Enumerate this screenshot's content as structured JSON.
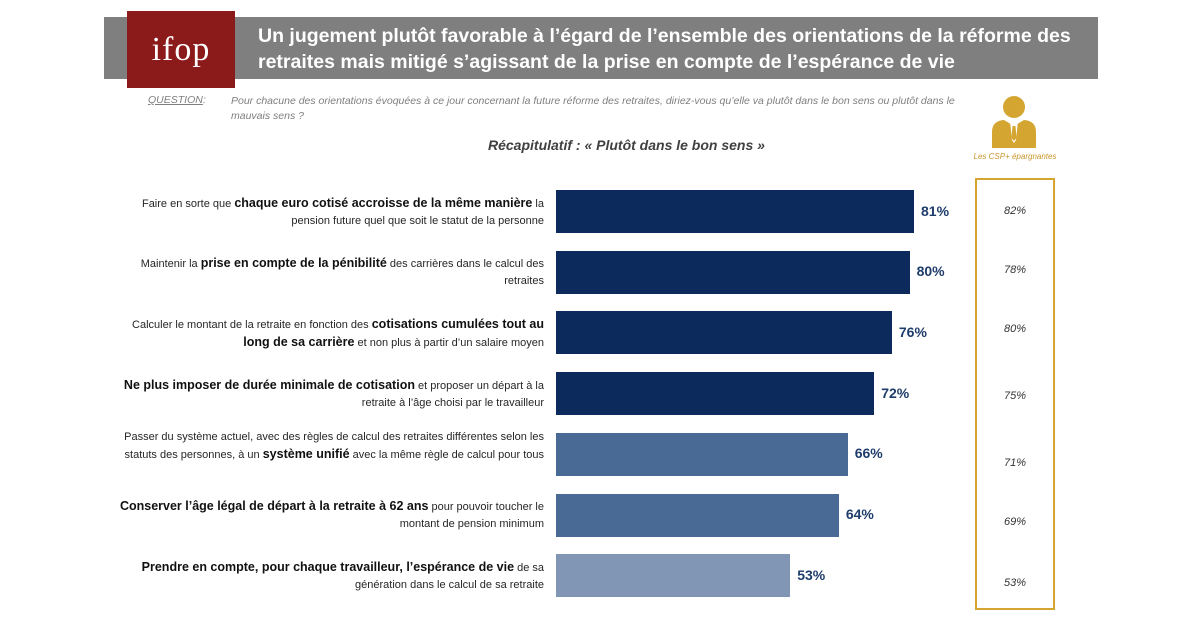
{
  "header": {
    "logo_text": "ifop",
    "title": "Un jugement plutôt favorable à l’égard de l’ensemble des orientations de la réforme des retraites mais mitigé s’agissant de la prise en compte de l’espérance de vie"
  },
  "question": {
    "label": "QUESTION",
    "colon": ":",
    "text": "Pour chacune des orientations évoquées à ce jour concernant la future réforme des retraites, diriez-vous qu’elle va plutôt dans le bon sens ou plutôt dans le mauvais sens ?"
  },
  "subtitle": "Récapitulatif : « Plutôt dans le bon sens »",
  "csp": {
    "label": "Les CSP+ épargnantes",
    "icon": "businessman-icon"
  },
  "colors": {
    "dark_bar": "#0d2a5c",
    "mid_bar": "#4a6a96",
    "light_bar": "#8096b4",
    "header_band": "#7f7f7f",
    "logo_bg": "#8b1a1a",
    "csp_accent": "#d4a531"
  },
  "chart_data": {
    "type": "bar",
    "orientation": "horizontal",
    "unit": "%",
    "xlim": [
      0,
      100
    ],
    "grid": false,
    "categories": [
      {
        "parts": [
          {
            "text": "Faire en sorte que ",
            "bold": false
          },
          {
            "text": "chaque euro cotisé accroisse de la même manière",
            "bold": true
          },
          {
            "text": " la pension future quel que soit le statut de la personne",
            "bold": false
          }
        ]
      },
      {
        "parts": [
          {
            "text": "Maintenir la ",
            "bold": false
          },
          {
            "text": "prise en compte de la pénibilité",
            "bold": true
          },
          {
            "text": " des carrières dans le calcul des retraites",
            "bold": false
          }
        ]
      },
      {
        "parts": [
          {
            "text": "Calculer le montant de la retraite en fonction des ",
            "bold": false
          },
          {
            "text": "cotisations cumulées tout au long de sa carrière",
            "bold": true
          },
          {
            "text": " et non plus à partir d’un salaire moyen",
            "bold": false
          }
        ]
      },
      {
        "parts": [
          {
            "text": "Ne plus imposer de durée minimale de cotisation",
            "bold": true
          },
          {
            "text": " et proposer un départ à la retraite à l’âge choisi par le travailleur",
            "bold": false
          }
        ]
      },
      {
        "parts": [
          {
            "text": "Passer du système actuel, avec des règles de calcul des retraites différentes selon les statuts des personnes, à un ",
            "bold": false
          },
          {
            "text": "système unifié",
            "bold": true
          },
          {
            "text": " avec la même règle de calcul pour tous",
            "bold": false
          }
        ]
      },
      {
        "parts": [
          {
            "text": "Conserver l’âge légal de départ à la retraite à 62 ans",
            "bold": true
          },
          {
            "text": " pour pouvoir toucher le montant de pension minimum",
            "bold": false
          }
        ]
      },
      {
        "parts": [
          {
            "text": "Prendre en compte, pour chaque travailleur, l’espérance de vie",
            "bold": true
          },
          {
            "text": " de sa génération dans le calcul de sa retraite",
            "bold": false
          }
        ]
      }
    ],
    "values": [
      81,
      80,
      76,
      72,
      66,
      64,
      53
    ],
    "value_labels": [
      "81%",
      "80%",
      "76%",
      "72%",
      "66%",
      "64%",
      "53%"
    ],
    "bar_colors": [
      "#0d2a5c",
      "#0d2a5c",
      "#0d2a5c",
      "#0d2a5c",
      "#4a6a96",
      "#4a6a96",
      "#8096b4"
    ],
    "comparison_series": {
      "name": "Les CSP+ épargnantes",
      "values": [
        82,
        78,
        80,
        75,
        71,
        69,
        53
      ],
      "value_labels": [
        "82%",
        "78%",
        "80%",
        "75%",
        "71%",
        "69%",
        "53%"
      ]
    }
  }
}
